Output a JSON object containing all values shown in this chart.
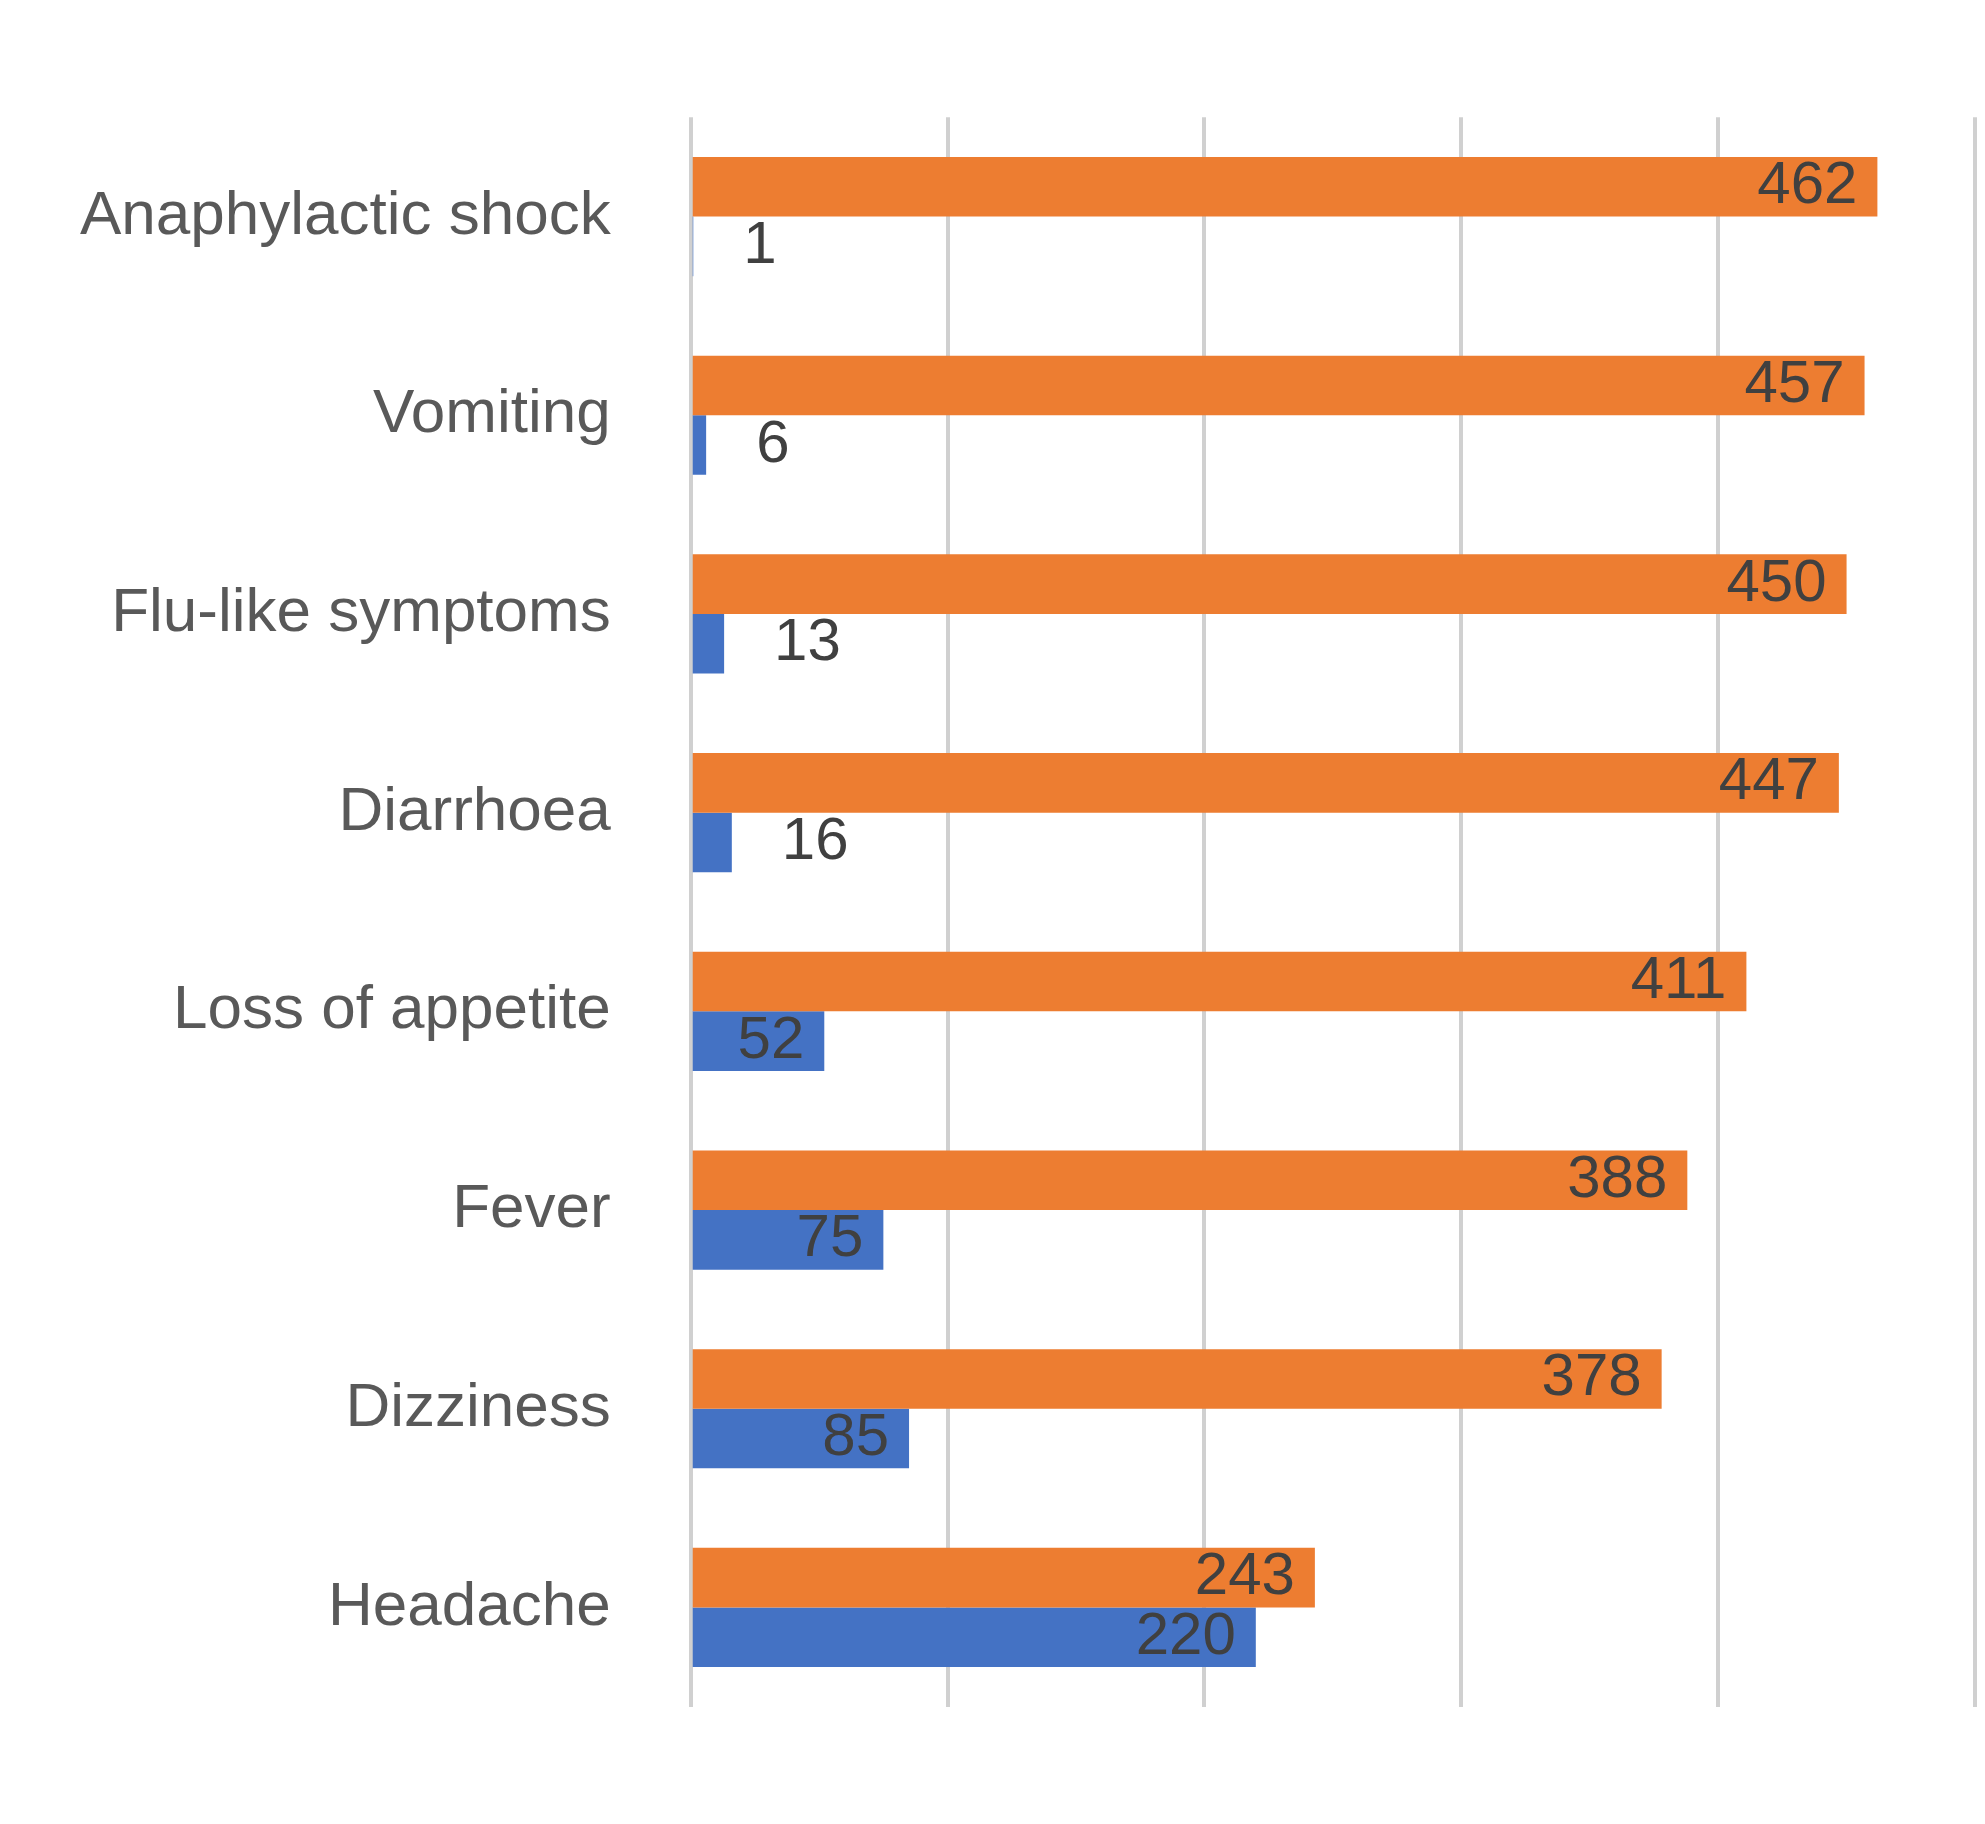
{
  "chart_data": {
    "type": "bar",
    "orientation": "horizontal",
    "categories": [
      "Anaphylactic shock",
      "Vomiting",
      "Flu-like symptoms",
      "Diarrhoea",
      "Loss of appetite",
      "Fever",
      "Dizziness",
      "Headache"
    ],
    "series": [
      {
        "color": "#ed7d31",
        "values": [
          462,
          457,
          450,
          447,
          411,
          388,
          378,
          243
        ]
      },
      {
        "color": "#4472c4",
        "values": [
          1,
          6,
          13,
          16,
          52,
          75,
          85,
          220
        ]
      }
    ],
    "xlim": [
      0,
      500
    ],
    "xticks": [
      {
        "value": 0,
        "label": null
      },
      {
        "value": 100,
        "label": null
      },
      {
        "value": 200,
        "label": null
      },
      {
        "value": 300,
        "label": null
      },
      {
        "value": 400,
        "label": null
      },
      {
        "value": 500,
        "label": null
      }
    ],
    "tick_labels": "y",
    "grid": "x",
    "legend": false,
    "data_labels": true
  }
}
